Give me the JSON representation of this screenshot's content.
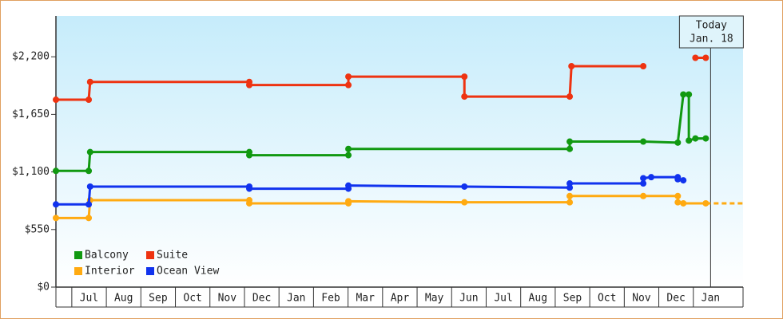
{
  "chart_data": {
    "type": "line",
    "xlim": [
      -0.46,
      19.44
    ],
    "xticks": [
      {
        "value": 0.5,
        "label": "Jul"
      },
      {
        "value": 1.5,
        "label": "Aug"
      },
      {
        "value": 2.5,
        "label": "Sep"
      },
      {
        "value": 3.5,
        "label": "Oct"
      },
      {
        "value": 4.5,
        "label": "Nov"
      },
      {
        "value": 5.5,
        "label": "Dec"
      },
      {
        "value": 6.5,
        "label": "Jan"
      },
      {
        "value": 7.5,
        "label": "Feb"
      },
      {
        "value": 8.5,
        "label": "Mar"
      },
      {
        "value": 9.5,
        "label": "Apr"
      },
      {
        "value": 10.5,
        "label": "May"
      },
      {
        "value": 11.5,
        "label": "Jun"
      },
      {
        "value": 12.5,
        "label": "Jul"
      },
      {
        "value": 13.5,
        "label": "Aug"
      },
      {
        "value": 14.5,
        "label": "Sep"
      },
      {
        "value": 15.5,
        "label": "Oct"
      },
      {
        "value": 16.5,
        "label": "Nov"
      },
      {
        "value": 17.5,
        "label": "Dec"
      },
      {
        "value": 18.5,
        "label": "Jan"
      }
    ],
    "ylim": [
      0,
      2590
    ],
    "yticks": [
      {
        "value": 0,
        "label": "$0"
      },
      {
        "value": 550,
        "label": "$550"
      },
      {
        "value": 1100,
        "label": "$1,100"
      },
      {
        "value": 1650,
        "label": "$1,650"
      },
      {
        "value": 2200,
        "label": "$2,200"
      }
    ],
    "today": {
      "x": 18.5,
      "lines": [
        "Today",
        "Jan. 18"
      ]
    },
    "series": [
      {
        "name": "Balcony",
        "color": "#119911",
        "x": [
          -0.46,
          0.49,
          0.53,
          5.14,
          5.14,
          8.01,
          8.01,
          14.42,
          14.42,
          16.55,
          17.55,
          17.71,
          17.87,
          17.87,
          18.06,
          18.36
        ],
        "values": [
          1110,
          1110,
          1290,
          1290,
          1260,
          1260,
          1320,
          1320,
          1390,
          1390,
          1380,
          1840,
          1840,
          1400,
          1420,
          1420
        ]
      },
      {
        "name": "Suite",
        "color": "#ee3311",
        "x": [
          -0.46,
          0.49,
          0.53,
          5.14,
          5.14,
          8.01,
          8.01,
          11.37,
          11.37,
          14.42,
          14.47,
          16.55,
          17.3,
          18.06,
          18.36
        ],
        "values": [
          1790,
          1790,
          1960,
          1960,
          1930,
          1930,
          2010,
          2010,
          1820,
          1820,
          2110,
          2110,
          null,
          2190,
          2190
        ]
      },
      {
        "name": "Interior",
        "color": "#ffaa11",
        "dashed_tail": true,
        "x": [
          -0.46,
          0.49,
          0.53,
          5.14,
          5.14,
          8.01,
          8.01,
          11.37,
          14.42,
          14.42,
          16.55,
          17.55,
          17.55,
          17.71,
          18.36
        ],
        "values": [
          660,
          660,
          830,
          830,
          800,
          800,
          820,
          810,
          810,
          870,
          870,
          870,
          810,
          800,
          800
        ]
      },
      {
        "name": "Ocean View",
        "color": "#1133ee",
        "x": [
          -0.46,
          0.49,
          0.53,
          5.14,
          5.14,
          8.01,
          8.01,
          11.37,
          14.42,
          14.42,
          16.55,
          16.55,
          16.78,
          17.55,
          17.55,
          17.71
        ],
        "values": [
          790,
          790,
          960,
          960,
          940,
          940,
          970,
          960,
          950,
          990,
          990,
          1040,
          1050,
          1050,
          1030,
          1020
        ]
      }
    ]
  }
}
